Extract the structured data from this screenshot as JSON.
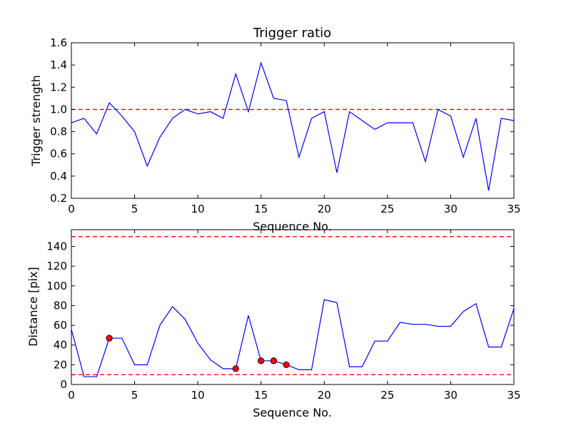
{
  "chart_data": [
    {
      "type": "line",
      "title": "Trigger ratio",
      "xlabel": "Sequence No.",
      "ylabel": "Trigger strength",
      "xlim": [
        0,
        35
      ],
      "ylim": [
        0.2,
        1.6
      ],
      "xticks": [
        0,
        5,
        10,
        15,
        20,
        25,
        30,
        35
      ],
      "yticks": [
        0.2,
        0.4,
        0.6,
        0.8,
        1.0,
        1.2,
        1.4,
        1.6
      ],
      "ytick_labels": [
        "0.2",
        "0.4",
        "0.6",
        "0.8",
        "1.0",
        "1.2",
        "1.4",
        "1.6"
      ],
      "reference_lines": [
        1.0
      ],
      "line_color": "#0000ff",
      "ref_color": "#ff0000",
      "marker_color": "#ff0000",
      "series": [
        {
          "name": "trigger-strength",
          "x": [
            0,
            1,
            2,
            3,
            4,
            5,
            6,
            7,
            8,
            9,
            10,
            11,
            12,
            13,
            14,
            15,
            16,
            17,
            18,
            19,
            20,
            21,
            22,
            23,
            24,
            25,
            26,
            27,
            28,
            29,
            30,
            31,
            32,
            33,
            34,
            35
          ],
          "values": [
            0.88,
            0.92,
            0.78,
            1.06,
            0.94,
            0.8,
            0.49,
            0.75,
            0.92,
            1.0,
            0.96,
            0.98,
            0.92,
            1.32,
            0.98,
            1.42,
            1.1,
            1.08,
            0.57,
            0.92,
            0.98,
            0.43,
            0.98,
            0.9,
            0.82,
            0.88,
            0.88,
            0.88,
            0.53,
            1.0,
            0.94,
            0.57,
            0.92,
            0.27,
            0.92,
            0.9
          ]
        }
      ],
      "markers": []
    },
    {
      "type": "line",
      "title": "",
      "xlabel": "Sequence No.",
      "ylabel": "Distance [pix]",
      "xlim": [
        0,
        35
      ],
      "ylim": [
        0,
        157
      ],
      "xticks": [
        0,
        5,
        10,
        15,
        20,
        25,
        30,
        35
      ],
      "yticks": [
        0,
        20,
        40,
        60,
        80,
        100,
        120,
        140
      ],
      "ytick_labels": [
        "0",
        "20",
        "40",
        "60",
        "80",
        "100",
        "120",
        "140"
      ],
      "reference_lines": [
        10,
        150
      ],
      "line_color": "#0000ff",
      "ref_color": "#ff0000",
      "marker_color": "#ff0000",
      "series": [
        {
          "name": "distance",
          "x": [
            0,
            1,
            2,
            3,
            4,
            5,
            6,
            7,
            8,
            9,
            10,
            11,
            12,
            13,
            14,
            15,
            16,
            17,
            18,
            19,
            20,
            21,
            22,
            23,
            24,
            25,
            26,
            27,
            28,
            29,
            30,
            31,
            32,
            33,
            34,
            35
          ],
          "values": [
            56,
            8,
            8,
            47,
            47,
            20,
            20,
            60,
            79,
            66,
            42,
            25,
            16,
            16,
            70,
            24,
            24,
            20,
            15,
            15,
            86,
            83,
            18,
            18,
            44,
            44,
            63,
            61,
            61,
            59,
            59,
            74,
            82,
            38,
            38,
            77
          ]
        }
      ],
      "markers": [
        {
          "x": 3,
          "y": 47
        },
        {
          "x": 13,
          "y": 16
        },
        {
          "x": 15,
          "y": 24
        },
        {
          "x": 16,
          "y": 24
        },
        {
          "x": 17,
          "y": 20
        }
      ]
    }
  ]
}
